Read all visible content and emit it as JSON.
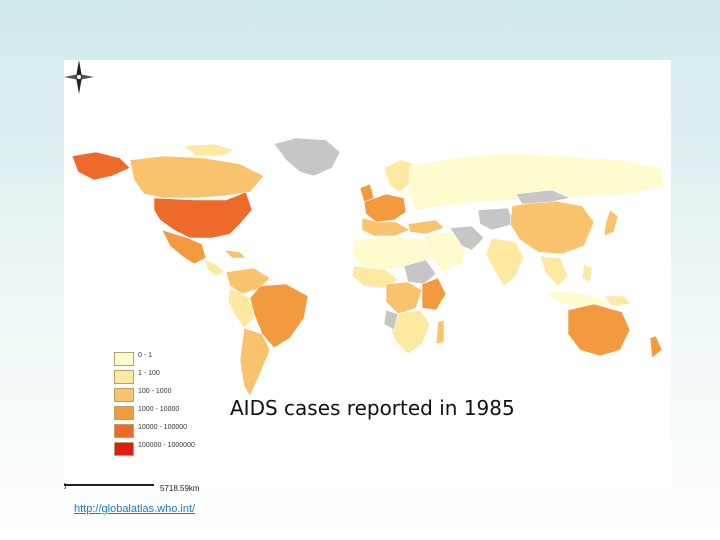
{
  "map": {
    "title": "AIDS cases reported in 1985",
    "legend": [
      {
        "label": "0 - 1",
        "color": "#fefccf"
      },
      {
        "label": "1 - 100",
        "color": "#fde9a0"
      },
      {
        "label": "100 - 1000",
        "color": "#f9c36e"
      },
      {
        "label": "1000 - 10000",
        "color": "#f39a3f"
      },
      {
        "label": "10000 - 100000",
        "color": "#ee6a2a"
      },
      {
        "label": "100000 - 1000000",
        "color": "#e11d12"
      }
    ],
    "no_data_color": "#c6c6c6",
    "scale": {
      "start": "0",
      "end": "5718.59km"
    },
    "compass_icon": "north-arrow-icon"
  },
  "footer": {
    "source_link": "http://globalatlas.who.int/"
  }
}
